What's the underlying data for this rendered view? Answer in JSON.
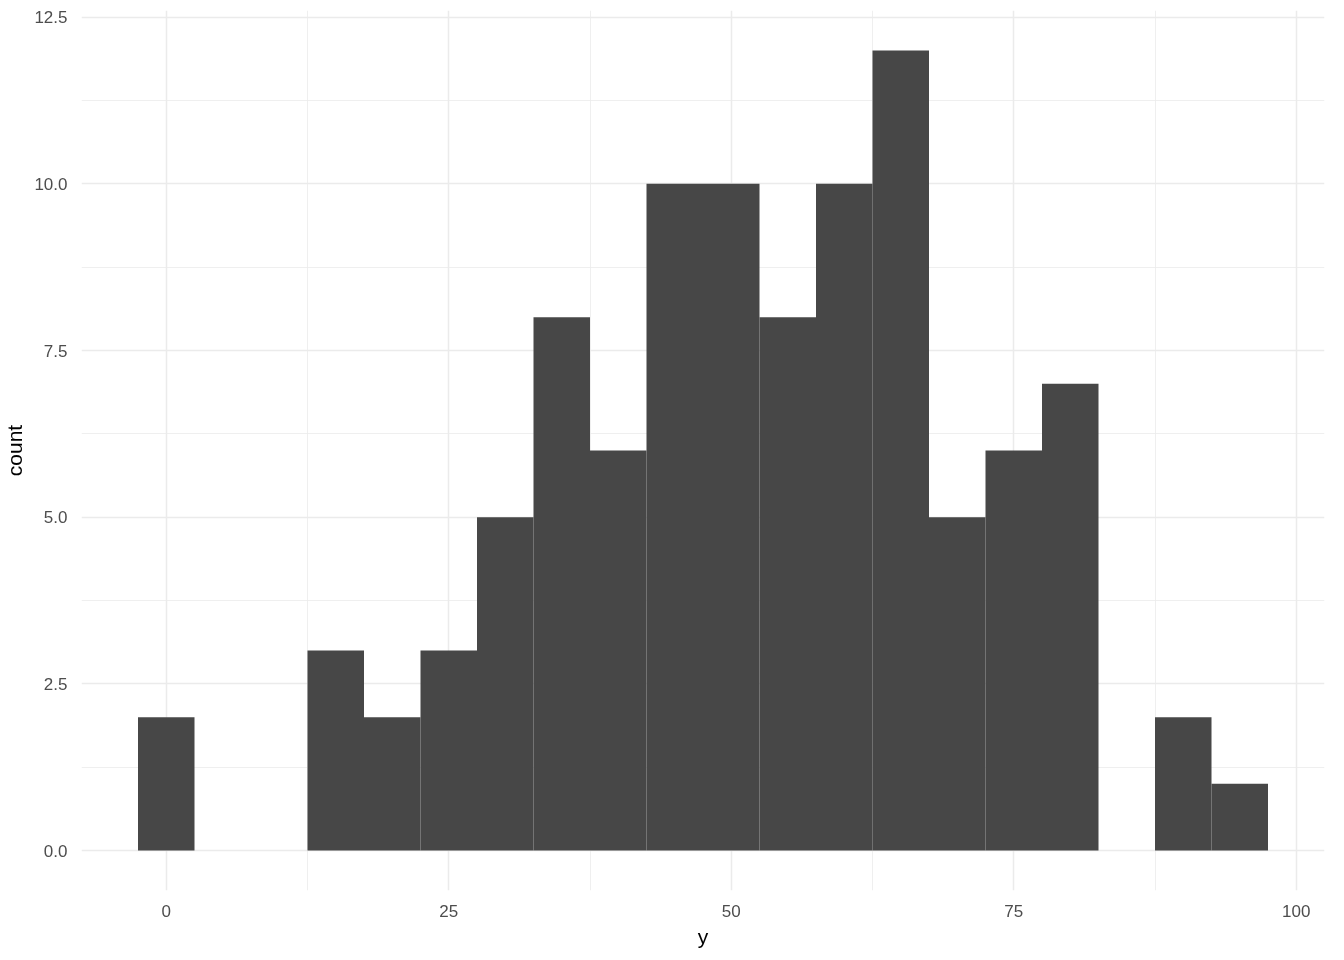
{
  "chart_data": {
    "type": "histogram",
    "xlabel": "y",
    "ylabel": "count",
    "bins": [
      -2.5,
      2.5,
      7.5,
      12.5,
      17.5,
      22.5,
      27.5,
      32.5,
      37.5,
      42.5,
      47.5,
      52.5,
      57.5,
      62.5,
      67.5,
      72.5,
      77.5,
      82.5,
      87.5,
      92.5,
      97.5
    ],
    "values": [
      2,
      0,
      0,
      3,
      2,
      3,
      5,
      8,
      6,
      10,
      10,
      8,
      10,
      12,
      5,
      6,
      7,
      0,
      2,
      1
    ],
    "color": "#474747",
    "xlim": [
      -7.5,
      102.5
    ],
    "ylim": [
      -0.6,
      12.6
    ],
    "xticks": [
      0,
      25,
      50,
      75,
      100
    ],
    "yticks": [
      {
        "value": 0,
        "label": "0.0"
      },
      2.5,
      {
        "value": 5,
        "label": "5.0"
      },
      7.5,
      {
        "value": 10,
        "label": "10.0"
      },
      12.5
    ],
    "grid": true
  }
}
